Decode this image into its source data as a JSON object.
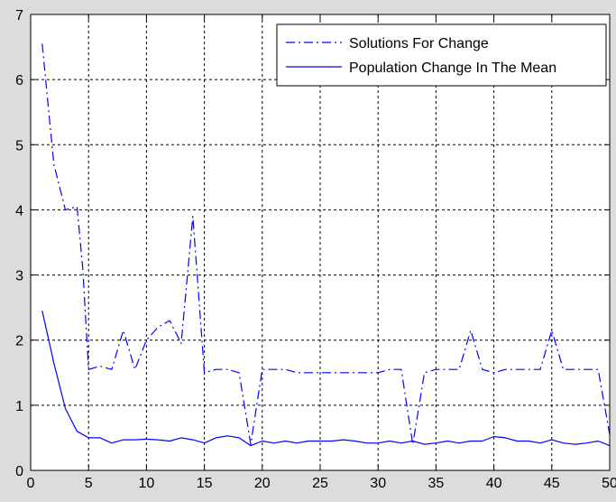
{
  "chart_data": {
    "type": "line",
    "title": "",
    "xlabel": "",
    "ylabel": "",
    "xlim": [
      0,
      50
    ],
    "ylim": [
      0,
      7
    ],
    "x_ticks": [
      0,
      5,
      10,
      15,
      20,
      25,
      30,
      35,
      40,
      45,
      50
    ],
    "y_ticks": [
      0,
      1,
      2,
      3,
      4,
      5,
      6,
      7
    ],
    "grid": true,
    "legend_position": "top-right",
    "series": [
      {
        "name": "Solutions For Change",
        "line_style": "dash-dot",
        "color": "#0000ff",
        "x": [
          1,
          2,
          3,
          4,
          4.5,
          5,
          6,
          7,
          8,
          9,
          10,
          11,
          12,
          13,
          14,
          15,
          16,
          17,
          18,
          19,
          20,
          21,
          22,
          23,
          24,
          25,
          26,
          27,
          28,
          29,
          30,
          31,
          32,
          33,
          34,
          35,
          36,
          37,
          38,
          39,
          40,
          41,
          42,
          43,
          44,
          45,
          46,
          47,
          48,
          49,
          50
        ],
        "values": [
          6.55,
          4.7,
          4.0,
          4.05,
          3.1,
          1.55,
          1.6,
          1.55,
          2.15,
          1.55,
          2.0,
          2.2,
          2.3,
          1.95,
          3.9,
          1.5,
          1.55,
          1.55,
          1.5,
          0.4,
          1.55,
          1.55,
          1.55,
          1.5,
          1.5,
          1.5,
          1.5,
          1.5,
          1.5,
          1.5,
          1.5,
          1.55,
          1.55,
          0.4,
          1.5,
          1.55,
          1.55,
          1.55,
          2.15,
          1.55,
          1.5,
          1.55,
          1.55,
          1.55,
          1.55,
          2.15,
          1.55,
          1.55,
          1.55,
          1.55,
          0.55
        ]
      },
      {
        "name": "Population Change In The Mean",
        "line_style": "solid",
        "color": "#0000ff",
        "x": [
          1,
          2,
          3,
          4,
          5,
          6,
          7,
          8,
          9,
          10,
          11,
          12,
          13,
          14,
          15,
          16,
          17,
          18,
          19,
          20,
          21,
          22,
          23,
          24,
          25,
          26,
          27,
          28,
          29,
          30,
          31,
          32,
          33,
          34,
          35,
          36,
          37,
          38,
          39,
          40,
          41,
          42,
          43,
          44,
          45,
          46,
          47,
          48,
          49,
          50
        ],
        "values": [
          2.45,
          1.65,
          0.95,
          0.6,
          0.5,
          0.5,
          0.42,
          0.47,
          0.47,
          0.48,
          0.47,
          0.45,
          0.5,
          0.47,
          0.42,
          0.5,
          0.53,
          0.5,
          0.38,
          0.45,
          0.42,
          0.45,
          0.42,
          0.45,
          0.45,
          0.45,
          0.47,
          0.45,
          0.42,
          0.42,
          0.45,
          0.42,
          0.45,
          0.4,
          0.42,
          0.45,
          0.42,
          0.45,
          0.45,
          0.52,
          0.5,
          0.45,
          0.45,
          0.42,
          0.47,
          0.42,
          0.4,
          0.42,
          0.45,
          0.38
        ]
      }
    ]
  }
}
